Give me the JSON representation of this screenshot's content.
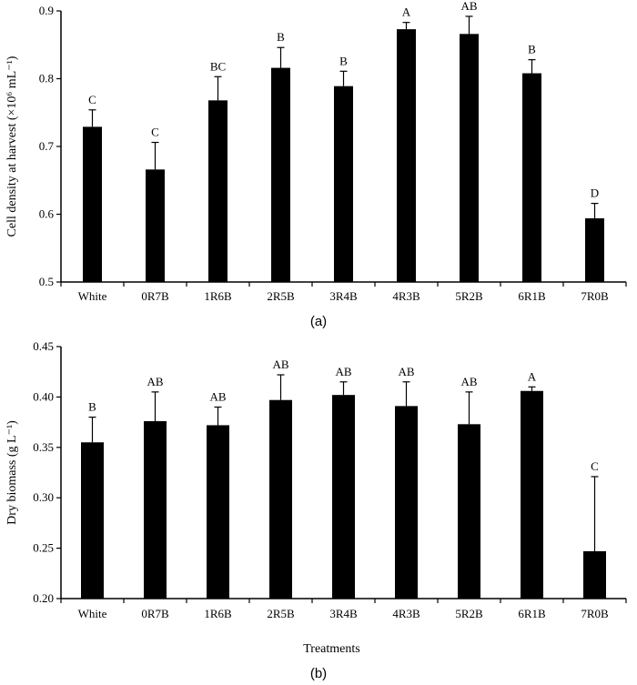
{
  "chart_data": [
    {
      "type": "bar",
      "panel_label": "(a)",
      "title": "",
      "xlabel": "",
      "ylabel": "Cell density at harvest (×10⁶ mL⁻¹)",
      "ylim": [
        0.5,
        0.9
      ],
      "yticks": [
        0.5,
        0.6,
        0.7,
        0.8,
        0.9
      ],
      "ytick_labels": [
        "0.5",
        "0.6",
        "0.7",
        "0.8",
        "0.9"
      ],
      "categories": [
        "White",
        "0R7B",
        "1R6B",
        "2R5B",
        "3R4B",
        "4R3B",
        "5R2B",
        "6R1B",
        "7R0B"
      ],
      "values": [
        0.729,
        0.666,
        0.768,
        0.816,
        0.789,
        0.873,
        0.866,
        0.808,
        0.594
      ],
      "errors": [
        0.025,
        0.04,
        0.035,
        0.03,
        0.022,
        0.01,
        0.026,
        0.02,
        0.022
      ],
      "significance": [
        "C",
        "C",
        "BC",
        "B",
        "B",
        "A",
        "AB",
        "B",
        "D"
      ],
      "grid": false
    },
    {
      "type": "bar",
      "panel_label": "(b)",
      "title": "",
      "xlabel": "Treatments",
      "ylabel": "Dry biomass (g L⁻¹)",
      "ylim": [
        0.2,
        0.45
      ],
      "yticks": [
        0.2,
        0.25,
        0.3,
        0.35,
        0.4,
        0.45
      ],
      "ytick_labels": [
        "0.20",
        "0.25",
        "0.30",
        "0.35",
        "0.40",
        "0.45"
      ],
      "categories": [
        "White",
        "0R7B",
        "1R6B",
        "2R5B",
        "3R4B",
        "4R3B",
        "5R2B",
        "6R1B",
        "7R0B"
      ],
      "values": [
        0.355,
        0.376,
        0.372,
        0.397,
        0.402,
        0.391,
        0.373,
        0.406,
        0.247
      ],
      "errors": [
        0.025,
        0.029,
        0.018,
        0.025,
        0.013,
        0.024,
        0.032,
        0.004,
        0.074
      ],
      "significance": [
        "B",
        "AB",
        "AB",
        "AB",
        "AB",
        "AB",
        "AB",
        "A",
        "C"
      ],
      "grid": false
    }
  ]
}
